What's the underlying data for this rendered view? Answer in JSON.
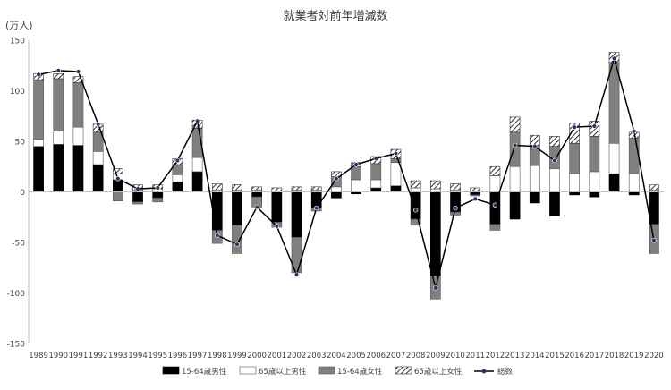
{
  "chart_data": {
    "type": "bar",
    "title": "就業者対前年増減数",
    "unit_label": "(万人)",
    "ylim": [
      -150,
      150
    ],
    "y_ticks": [
      150,
      100,
      50,
      0,
      -50,
      -100,
      -150
    ],
    "grid": false,
    "legend_position": "bottom",
    "categories": [
      "1989",
      "1990",
      "1991",
      "1992",
      "1993",
      "1994",
      "1995",
      "1996",
      "1997",
      "1998",
      "1999",
      "2000",
      "2001",
      "2002",
      "2003",
      "2004",
      "2005",
      "2006",
      "2007",
      "2008",
      "2009",
      "2010",
      "2011",
      "2012",
      "2013",
      "2014",
      "2015",
      "2016",
      "2017",
      "2018",
      "2019",
      "2020"
    ],
    "series": [
      {
        "name": "15-64歳男性",
        "style": "solid-black",
        "values": [
          45,
          47,
          46,
          27,
          12,
          -10,
          -6,
          10,
          20,
          -38,
          -33,
          -5,
          -30,
          -45,
          -16,
          -6,
          -2,
          4,
          6,
          -27,
          -83,
          -20,
          -3,
          -32,
          -27,
          -11,
          -24,
          -3,
          -5,
          18,
          -3,
          -32
        ]
      },
      {
        "name": "65歳以上男性",
        "style": "white",
        "values": [
          7,
          13,
          18,
          13,
          6,
          2,
          3,
          7,
          14,
          2,
          2,
          2,
          1,
          2,
          2,
          5,
          12,
          8,
          23,
          4,
          3,
          2,
          1,
          16,
          25,
          26,
          23,
          18,
          20,
          30,
          18,
          2
        ]
      },
      {
        "name": "15-64歳女性",
        "style": "gray",
        "values": [
          59,
          52,
          44,
          19,
          -9,
          -2,
          -4,
          10,
          29,
          -13,
          -28,
          -10,
          -5,
          -35,
          -3,
          10,
          13,
          16,
          4,
          -6,
          -23,
          -3,
          -1,
          -6,
          34,
          20,
          22,
          30,
          35,
          80,
          35,
          -29
        ]
      },
      {
        "name": "65歳以上女性",
        "style": "hatch",
        "values": [
          6,
          5,
          6,
          8,
          5,
          5,
          4,
          6,
          8,
          6,
          5,
          3,
          3,
          3,
          3,
          5,
          4,
          7,
          9,
          7,
          8,
          6,
          3,
          9,
          15,
          10,
          10,
          20,
          15,
          10,
          6,
          5
        ]
      },
      {
        "name": "総数",
        "style": "line-marker",
        "values": [
          116,
          120,
          119,
          67,
          13,
          3,
          4,
          31,
          70,
          -43,
          -52,
          -15,
          -34,
          -82,
          -16,
          13,
          27,
          33,
          38,
          -18,
          -95,
          -16,
          -7,
          -13,
          46,
          45,
          31,
          64,
          65,
          132,
          60,
          -48
        ]
      }
    ]
  }
}
